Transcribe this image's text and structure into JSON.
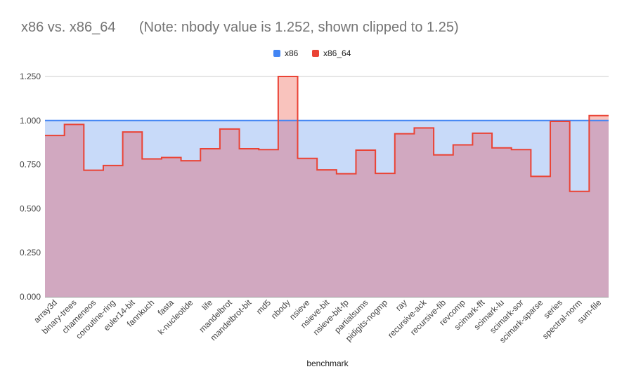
{
  "chart_data": {
    "type": "area",
    "title": "x86 vs. x86_64      (Note: nbody value is 1.252, shown clipped to 1.25)",
    "xlabel": "benchmark",
    "ylabel": "",
    "ylim": [
      0,
      1.25
    ],
    "yticks": [
      "0.000",
      "0.250",
      "0.500",
      "0.750",
      "1.000",
      "1.250"
    ],
    "grid": true,
    "legend_position": "top",
    "step": true,
    "categories": [
      "array3d",
      "binary-trees",
      "chameneos",
      "coroutine-ring",
      "euler14-bit",
      "fannkuch",
      "fasta",
      "k-nucleotide",
      "life",
      "mandelbrot",
      "mandelbrot-bit",
      "md5",
      "nbody",
      "nsieve",
      "nsieve-bit",
      "nsieve-bit-fp",
      "partialsums",
      "pidigits-nogmp",
      "ray",
      "recursive-ack",
      "recursive-fib",
      "revcomp",
      "scimark-fft",
      "scimark-lu",
      "scimark-sor",
      "scimark-sparse",
      "series",
      "spectral-norm",
      "sum-file"
    ],
    "series": [
      {
        "name": "x86",
        "color": "#4285f4",
        "fill": "#c8daf9",
        "values": [
          1,
          1,
          1,
          1,
          1,
          1,
          1,
          1,
          1,
          1,
          1,
          1,
          1,
          1,
          1,
          1,
          1,
          1,
          1,
          1,
          1,
          1,
          1,
          1,
          1,
          1,
          1,
          1,
          1
        ]
      },
      {
        "name": "x86_64",
        "color": "#ea4335",
        "fill": "#f9c3bd",
        "values": [
          0.915,
          0.978,
          0.718,
          0.745,
          0.935,
          0.782,
          0.79,
          0.772,
          0.84,
          0.952,
          0.84,
          0.835,
          1.25,
          0.785,
          0.72,
          0.698,
          0.832,
          0.7,
          0.925,
          0.958,
          0.805,
          0.862,
          0.928,
          0.845,
          0.835,
          0.683,
          0.995,
          0.598,
          1.028
        ]
      }
    ],
    "overlap_color": "#d1a8c0"
  }
}
